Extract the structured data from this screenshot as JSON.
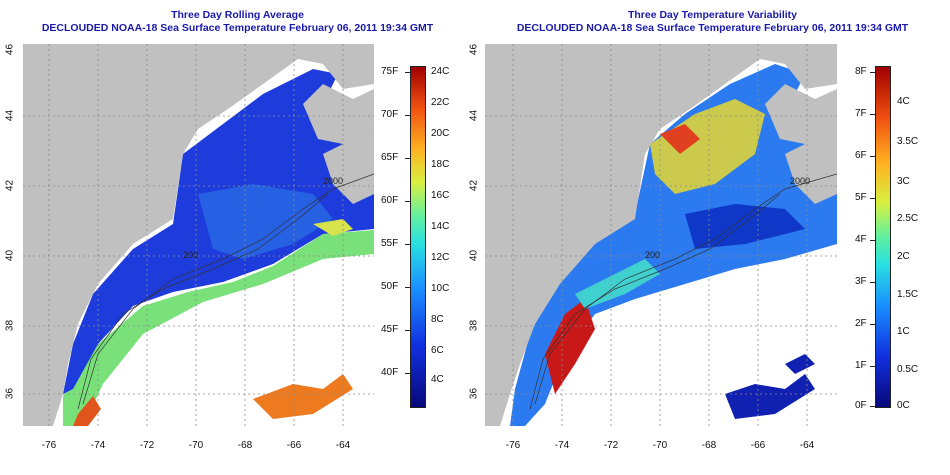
{
  "left": {
    "title_line1": "Three Day Rolling Average",
    "title_line2": "DECLOUDED NOAA-18 Sea Surface Temperature February 06, 2011 19:34 GMT",
    "colorbar_f": [
      "75F",
      "70F",
      "65F",
      "60F",
      "55F",
      "50F",
      "45F",
      "40F"
    ],
    "colorbar_c": [
      "24C",
      "22C",
      "20C",
      "18C",
      "16C",
      "14C",
      "12C",
      "10C",
      "8C",
      "6C",
      "4C"
    ]
  },
  "right": {
    "title_line1": "Three Day Temperature Variability",
    "title_line2": "DECLOUDED NOAA-18 Sea Surface Temperature February 06, 2011 19:34 GMT",
    "colorbar_f": [
      "8F",
      "7F",
      "6F",
      "5F",
      "4F",
      "3F",
      "2F",
      "1F",
      "0F"
    ],
    "colorbar_c": [
      "4C",
      "3.5C",
      "3C",
      "2.5C",
      "2C",
      "1.5C",
      "1C",
      "0.5C",
      "0C"
    ]
  },
  "axes": {
    "x_ticks": [
      "-76",
      "-74",
      "-72",
      "-70",
      "-68",
      "-66",
      "-64"
    ],
    "y_ticks": [
      "46",
      "44",
      "42",
      "40",
      "38",
      "36"
    ]
  },
  "contour_labels": [
    "200",
    "2000",
    "200"
  ],
  "colors": {
    "land": "#c0c0c0",
    "title": "#1a1aaa",
    "sst_water": "#1e3cdc",
    "grid": "#8a8a8a"
  }
}
